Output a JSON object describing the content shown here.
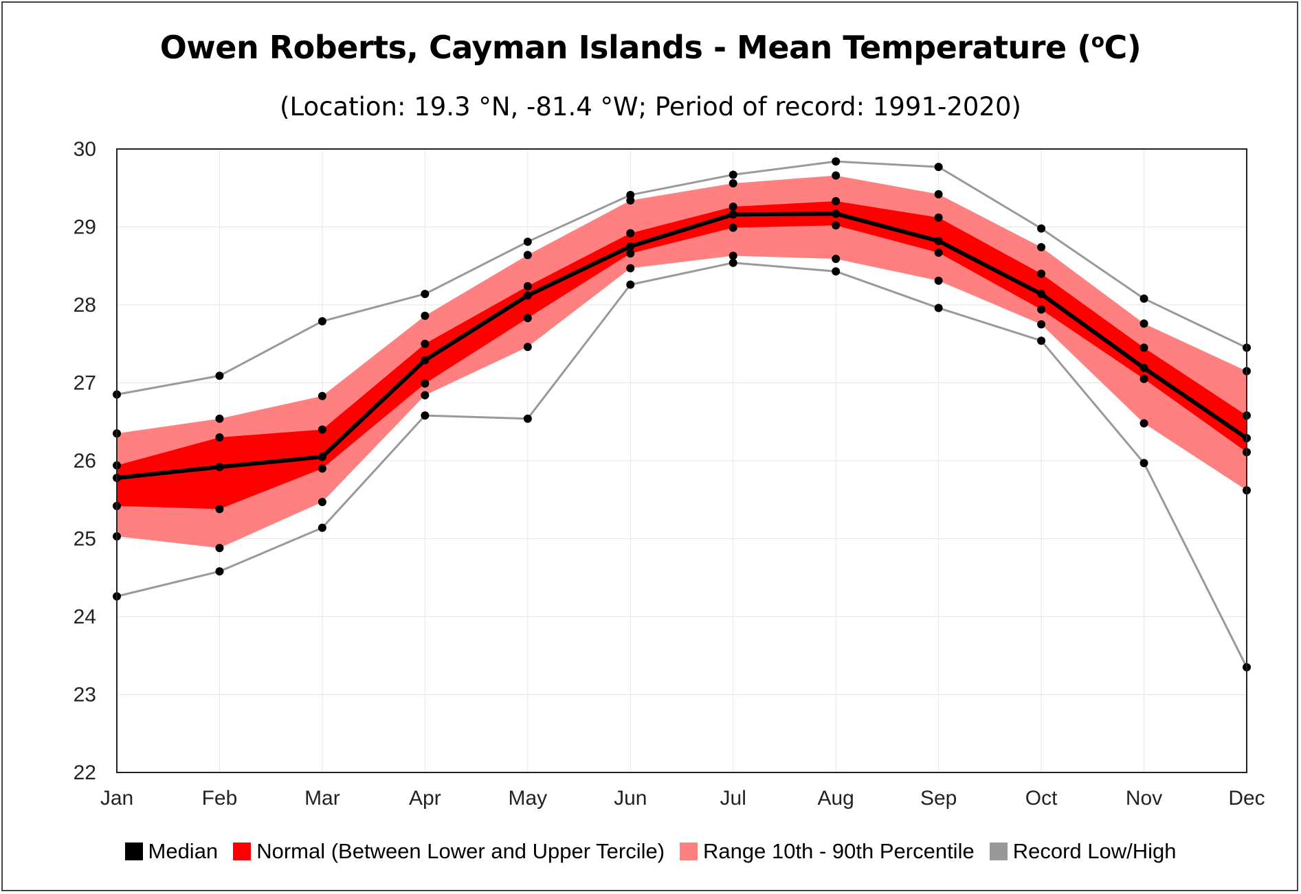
{
  "title": "Owen Roberts, Cayman Islands - Mean Temperature (",
  "title_unit_sup": "o",
  "title_unit_end": "C)",
  "subtitle": "(Location: 19.3 °N, -81.4 °W; Period of record: 1991-2020)",
  "colors": {
    "median": "#000000",
    "normal": "#ff0000",
    "range": "#ff8080",
    "record": "#999999",
    "grid": "#e6e6e6"
  },
  "legend": [
    {
      "label": "Median",
      "color": "#000000"
    },
    {
      "label": "Normal (Between Lower and Upper Tercile)",
      "color": "#ff0000"
    },
    {
      "label": "Range 10th - 90th Percentile",
      "color": "#ff8080"
    },
    {
      "label": "Record Low/High",
      "color": "#999999"
    }
  ],
  "chart_data": {
    "type": "line",
    "categories": [
      "Jan",
      "Feb",
      "Mar",
      "Apr",
      "May",
      "Jun",
      "Jul",
      "Aug",
      "Sep",
      "Oct",
      "Nov",
      "Dec"
    ],
    "ylim": [
      22,
      30
    ],
    "yticks": [
      22,
      23,
      24,
      25,
      26,
      27,
      28,
      29,
      30
    ],
    "grid": true,
    "legend_position": "bottom",
    "series": [
      {
        "name": "Median",
        "values": [
          25.78,
          25.92,
          26.05,
          27.29,
          28.12,
          28.75,
          29.16,
          29.17,
          28.82,
          28.14,
          27.19,
          26.29
        ]
      },
      {
        "name": "Record Low/High",
        "role": "record_high",
        "values": [
          26.85,
          27.09,
          27.79,
          28.14,
          28.81,
          29.41,
          29.67,
          29.84,
          29.77,
          28.98,
          28.08,
          27.45
        ]
      },
      {
        "name": "Record Low/High",
        "role": "record_low",
        "values": [
          24.26,
          24.58,
          25.14,
          26.58,
          26.54,
          28.26,
          28.54,
          28.43,
          27.96,
          27.54,
          25.97,
          23.35
        ]
      },
      {
        "name": "Range 10th - 90th Percentile",
        "role": "p90",
        "values": [
          26.35,
          26.54,
          26.83,
          27.86,
          28.64,
          29.34,
          29.56,
          29.66,
          29.42,
          28.74,
          27.76,
          27.15
        ]
      },
      {
        "name": "Range 10th - 90th Percentile",
        "role": "p10",
        "values": [
          25.03,
          24.88,
          25.47,
          26.84,
          27.46,
          28.47,
          28.63,
          28.59,
          28.31,
          27.75,
          26.48,
          25.62
        ]
      },
      {
        "name": "Normal (Between Lower and Upper Tercile)",
        "role": "upper_tercile",
        "values": [
          25.94,
          26.3,
          26.4,
          27.5,
          28.24,
          28.92,
          29.26,
          29.33,
          29.12,
          28.4,
          27.45,
          26.58
        ]
      },
      {
        "name": "Normal (Between Lower and Upper Tercile)",
        "role": "lower_tercile",
        "values": [
          25.42,
          25.38,
          25.9,
          26.99,
          27.83,
          28.66,
          28.99,
          29.02,
          28.67,
          27.94,
          27.05,
          26.11
        ]
      }
    ]
  }
}
